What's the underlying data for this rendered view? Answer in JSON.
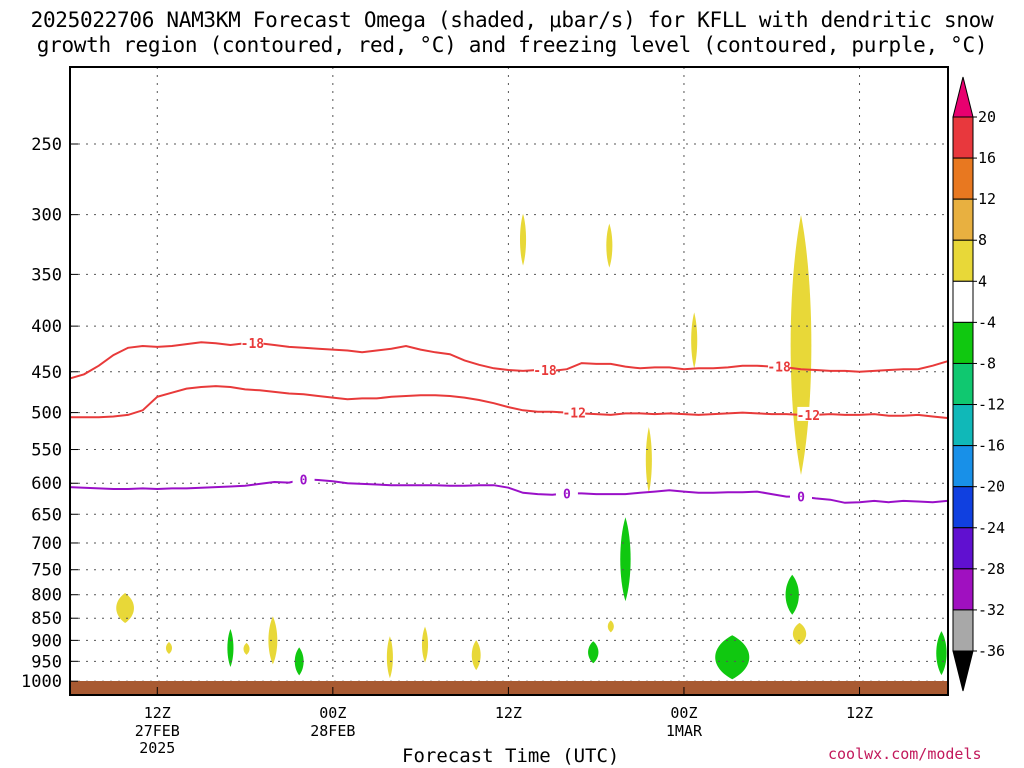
{
  "chart_data": {
    "type": "contour",
    "title": "2025022706 NAM3KM Forecast Omega (shaded, μbar/s) for KFLL with dendritic snow",
    "subtitle": "growth region (contoured, red, °C) and freezing level (contoured, purple, °C)",
    "xlabel": "Forecast Time (UTC)",
    "credit": "coolwx.com/models",
    "x_range_hours": [
      0,
      60
    ],
    "x_ticks": [
      {
        "hour": 6,
        "label": "12Z",
        "date": "27FEB",
        "year": "2025"
      },
      {
        "hour": 18,
        "label": "00Z",
        "date": "28FEB",
        "year": ""
      },
      {
        "hour": 30,
        "label": "12Z",
        "date": "",
        "year": ""
      },
      {
        "hour": 42,
        "label": "00Z",
        "date": "1MAR",
        "year": ""
      },
      {
        "hour": 54,
        "label": "12Z",
        "date": "",
        "year": ""
      }
    ],
    "y_axis": "pressure (hPa)",
    "y_ticks": [
      250,
      300,
      350,
      400,
      450,
      500,
      550,
      600,
      650,
      700,
      750,
      800,
      850,
      900,
      950,
      1000
    ],
    "grid": true,
    "colorbar": {
      "labels": [
        "20",
        "16",
        "12",
        "8",
        "4",
        "-4",
        "-8",
        "-12",
        "-16",
        "-20",
        "-24",
        "-28",
        "-32",
        "-36"
      ],
      "colors": [
        "#e8006f",
        "#e8383d",
        "#e87820",
        "#e8b040",
        "#e8d838",
        "#ffffff",
        "#10c810",
        "#10c870",
        "#10b8b8",
        "#1890e8",
        "#1040e0",
        "#6010d0",
        "#a010c0",
        "#a8a8a8",
        "#000000"
      ]
    },
    "contour_lines": [
      {
        "name": "-18",
        "color": "#e83a3a",
        "label_hours": [
          12.5,
          32.5,
          48.5
        ],
        "points": [
          [
            0,
            458
          ],
          [
            1,
            453
          ],
          [
            2,
            443
          ],
          [
            3,
            431
          ],
          [
            4,
            423
          ],
          [
            5,
            421
          ],
          [
            6,
            422
          ],
          [
            7,
            421
          ],
          [
            8,
            419
          ],
          [
            9,
            417
          ],
          [
            10,
            418
          ],
          [
            11,
            420
          ],
          [
            12,
            418
          ],
          [
            13,
            418
          ],
          [
            14,
            420
          ],
          [
            15,
            422
          ],
          [
            16,
            423
          ],
          [
            17,
            424
          ],
          [
            18,
            425
          ],
          [
            19,
            426
          ],
          [
            20,
            428
          ],
          [
            21,
            426
          ],
          [
            22,
            424
          ],
          [
            23,
            421
          ],
          [
            24,
            425
          ],
          [
            25,
            428
          ],
          [
            26,
            430
          ],
          [
            27,
            437
          ],
          [
            28,
            442
          ],
          [
            29,
            446
          ],
          [
            30,
            448
          ],
          [
            31,
            449
          ],
          [
            32,
            448
          ],
          [
            33,
            449
          ],
          [
            34,
            447
          ],
          [
            35,
            440
          ],
          [
            36,
            441
          ],
          [
            37,
            441
          ],
          [
            38,
            444
          ],
          [
            39,
            446
          ],
          [
            40,
            445
          ],
          [
            41,
            445
          ],
          [
            42,
            447
          ],
          [
            43,
            446
          ],
          [
            44,
            446
          ],
          [
            45,
            445
          ],
          [
            46,
            443
          ],
          [
            47,
            443
          ],
          [
            48,
            444
          ],
          [
            49,
            445
          ],
          [
            50,
            447
          ],
          [
            51,
            448
          ],
          [
            52,
            449
          ],
          [
            53,
            449
          ],
          [
            54,
            450
          ],
          [
            55,
            449
          ],
          [
            56,
            448
          ],
          [
            57,
            447
          ],
          [
            58,
            447
          ],
          [
            59,
            443
          ],
          [
            60,
            438
          ]
        ]
      },
      {
        "name": "-12",
        "color": "#e83a3a",
        "label_hours": [
          34.5,
          50.5
        ],
        "points": [
          [
            0,
            506
          ],
          [
            1,
            506
          ],
          [
            2,
            506
          ],
          [
            3,
            505
          ],
          [
            4,
            503
          ],
          [
            5,
            497
          ],
          [
            6,
            480
          ],
          [
            7,
            475
          ],
          [
            8,
            470
          ],
          [
            9,
            468
          ],
          [
            10,
            467
          ],
          [
            11,
            468
          ],
          [
            12,
            471
          ],
          [
            13,
            472
          ],
          [
            14,
            474
          ],
          [
            15,
            476
          ],
          [
            16,
            477
          ],
          [
            17,
            479
          ],
          [
            18,
            481
          ],
          [
            19,
            483
          ],
          [
            20,
            482
          ],
          [
            21,
            482
          ],
          [
            22,
            480
          ],
          [
            23,
            479
          ],
          [
            24,
            478
          ],
          [
            25,
            478
          ],
          [
            26,
            479
          ],
          [
            27,
            481
          ],
          [
            28,
            484
          ],
          [
            29,
            488
          ],
          [
            30,
            493
          ],
          [
            31,
            497
          ],
          [
            32,
            499
          ],
          [
            33,
            499
          ],
          [
            34,
            500
          ],
          [
            35,
            501
          ],
          [
            36,
            502
          ],
          [
            37,
            503
          ],
          [
            38,
            501
          ],
          [
            39,
            501
          ],
          [
            40,
            502
          ],
          [
            41,
            501
          ],
          [
            42,
            502
          ],
          [
            43,
            503
          ],
          [
            44,
            502
          ],
          [
            45,
            501
          ],
          [
            46,
            500
          ],
          [
            47,
            501
          ],
          [
            48,
            502
          ],
          [
            49,
            502
          ],
          [
            50,
            503
          ],
          [
            51,
            503
          ],
          [
            52,
            502
          ],
          [
            53,
            503
          ],
          [
            54,
            503
          ],
          [
            55,
            502
          ],
          [
            56,
            504
          ],
          [
            57,
            504
          ],
          [
            58,
            503
          ],
          [
            59,
            505
          ],
          [
            60,
            507
          ]
        ]
      },
      {
        "name": "0",
        "color": "#9a10c8",
        "label_hours": [
          16,
          34,
          50
        ],
        "points": [
          [
            0,
            606
          ],
          [
            1,
            607
          ],
          [
            2,
            608
          ],
          [
            3,
            609
          ],
          [
            4,
            609
          ],
          [
            5,
            608
          ],
          [
            6,
            609
          ],
          [
            7,
            608
          ],
          [
            8,
            608
          ],
          [
            9,
            607
          ],
          [
            10,
            606
          ],
          [
            11,
            605
          ],
          [
            12,
            604
          ],
          [
            13,
            601
          ],
          [
            14,
            598
          ],
          [
            15,
            599
          ],
          [
            16,
            594
          ],
          [
            17,
            595
          ],
          [
            18,
            597
          ],
          [
            19,
            600
          ],
          [
            20,
            601
          ],
          [
            21,
            602
          ],
          [
            22,
            603
          ],
          [
            23,
            603
          ],
          [
            24,
            603
          ],
          [
            25,
            603
          ],
          [
            26,
            604
          ],
          [
            27,
            604
          ],
          [
            28,
            603
          ],
          [
            29,
            603
          ],
          [
            30,
            607
          ],
          [
            31,
            615
          ],
          [
            32,
            617
          ],
          [
            33,
            618
          ],
          [
            34,
            616
          ],
          [
            35,
            616
          ],
          [
            36,
            617
          ],
          [
            37,
            617
          ],
          [
            38,
            617
          ],
          [
            39,
            615
          ],
          [
            40,
            613
          ],
          [
            41,
            611
          ],
          [
            42,
            613
          ],
          [
            43,
            615
          ],
          [
            44,
            615
          ],
          [
            45,
            614
          ],
          [
            46,
            614
          ],
          [
            47,
            613
          ],
          [
            48,
            617
          ],
          [
            49,
            621
          ],
          [
            50,
            621
          ],
          [
            51,
            624
          ],
          [
            52,
            626
          ],
          [
            53,
            631
          ],
          [
            54,
            630
          ],
          [
            55,
            628
          ],
          [
            56,
            630
          ],
          [
            57,
            628
          ],
          [
            58,
            629
          ],
          [
            59,
            630
          ],
          [
            60,
            628
          ]
        ]
      }
    ],
    "shaded_regions": [
      {
        "category": "4 to 8",
        "color": "#e8d838",
        "center": [
          3.8,
          828
        ],
        "extent_hours": 1.2
      },
      {
        "category": "4 to 8",
        "color": "#e8d838",
        "center": [
          6.8,
          918
        ],
        "extent_hours": 0.3
      },
      {
        "category": "4 to 8",
        "color": "#e8d838",
        "center": [
          12.1,
          920
        ],
        "extent_hours": 0.4
      },
      {
        "category": "4 to 8",
        "color": "#e8d838",
        "center": [
          13.9,
          900
        ],
        "extent_hours": 0.6
      },
      {
        "category": "4 to 8",
        "color": "#e8d838",
        "center": [
          21.9,
          940
        ],
        "extent_hours": 0.4
      },
      {
        "category": "4 to 8",
        "color": "#e8d838",
        "center": [
          24.3,
          910
        ],
        "extent_hours": 0.4
      },
      {
        "category": "4 to 8",
        "color": "#e8d838",
        "center": [
          27.8,
          935
        ],
        "extent_hours": 0.6
      },
      {
        "category": "4 to 8",
        "color": "#e8d838",
        "center": [
          31.0,
          320
        ],
        "extent_hours": 0.3
      },
      {
        "category": "4 to 8",
        "color": "#e8d838",
        "center": [
          36.9,
          325
        ],
        "extent_hours": 0.3
      },
      {
        "category": "4 to 8",
        "color": "#e8d838",
        "center": [
          37.0,
          868
        ],
        "extent_hours": 0.2
      },
      {
        "category": "4 to 8",
        "color": "#e8d838",
        "center": [
          39.6,
          565
        ],
        "extent_hours": 0.3
      },
      {
        "category": "4 to 8",
        "color": "#e8d838",
        "center": [
          42.7,
          415
        ],
        "extent_hours": 0.3
      },
      {
        "category": "4 to 8",
        "color": "#e8d838",
        "center": [
          50.0,
          420
        ],
        "extent_hours": 1.4
      },
      {
        "category": "4 to 8",
        "color": "#e8d838",
        "center": [
          49.9,
          885
        ],
        "extent_hours": 0.9
      },
      {
        "category": "-4 to -8",
        "color": "#10c810",
        "center": [
          11.0,
          918
        ],
        "extent_hours": 0.1
      },
      {
        "category": "-4 to -8",
        "color": "#10c810",
        "center": [
          15.7,
          950
        ],
        "extent_hours": 0.6
      },
      {
        "category": "-4 to -8",
        "color": "#10c810",
        "center": [
          35.8,
          928
        ],
        "extent_hours": 0.7
      },
      {
        "category": "-4 to -8",
        "color": "#10c810",
        "center": [
          38.0,
          730
        ],
        "extent_hours": 0.7
      },
      {
        "category": "-4 to -8",
        "color": "#10c810",
        "center": [
          45.3,
          940
        ],
        "extent_hours": 2.3
      },
      {
        "category": "-4 to -8",
        "color": "#10c810",
        "center": [
          49.4,
          800
        ],
        "extent_hours": 0.9
      },
      {
        "category": "-4 to -8",
        "color": "#10c810",
        "center": [
          59.6,
          930
        ],
        "extent_hours": 0.7
      }
    ],
    "surface_color": "#a85a32"
  }
}
